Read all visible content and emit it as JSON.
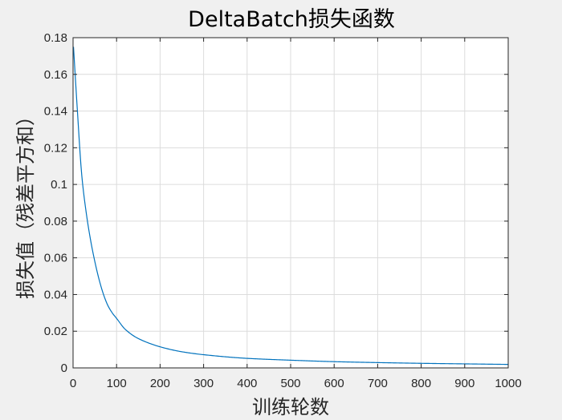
{
  "chart_data": {
    "type": "line",
    "title": "DeltaBatch损失函数",
    "xlabel": "训练轮数",
    "ylabel": "损失值（残差平方和）",
    "xlim": [
      0,
      1000
    ],
    "ylim": [
      0,
      0.18
    ],
    "grid": true,
    "x_ticks": [
      0,
      100,
      200,
      300,
      400,
      500,
      600,
      700,
      800,
      900,
      1000
    ],
    "x_tick_labels": [
      "0",
      "100",
      "200",
      "300",
      "400",
      "500",
      "600",
      "700",
      "800",
      "900",
      "1000"
    ],
    "y_ticks": [
      0,
      0.02,
      0.04,
      0.06,
      0.08,
      0.1,
      0.12,
      0.14,
      0.16,
      0.18
    ],
    "y_tick_labels": [
      "0",
      "0.02",
      "0.04",
      "0.06",
      "0.08",
      "0.1",
      "0.12",
      "0.14",
      "0.16",
      "0.18"
    ],
    "series": [
      {
        "color": "#0072bd",
        "x": [
          1,
          10,
          20,
          30,
          40,
          50,
          60,
          70,
          80,
          90,
          100,
          120,
          150,
          200,
          250,
          300,
          400,
          500,
          600,
          700,
          800,
          900,
          1000
        ],
        "y": [
          0.175,
          0.14,
          0.105,
          0.085,
          0.07,
          0.058,
          0.048,
          0.04,
          0.034,
          0.03,
          0.027,
          0.021,
          0.016,
          0.0115,
          0.0088,
          0.0072,
          0.0052,
          0.0042,
          0.0034,
          0.0029,
          0.0025,
          0.0022,
          0.0019
        ]
      }
    ]
  }
}
